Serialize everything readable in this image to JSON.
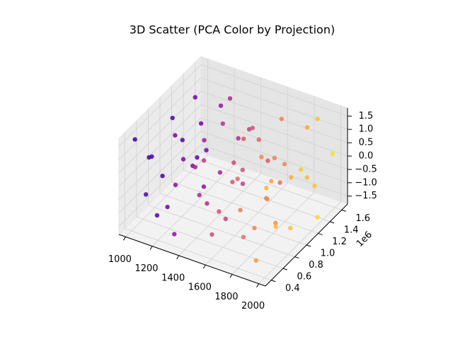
{
  "chart_data": {
    "type": "scatter3d",
    "title": "3D Scatter (PCA Color by Projection)",
    "colormap": "plasma",
    "grid": true,
    "x": [
      1000,
      1100,
      1200,
      1300,
      1400,
      1500,
      1600,
      1700,
      1800,
      1900,
      2000,
      1000,
      1100,
      1200,
      1300,
      1400,
      1500,
      1600,
      1700,
      1800,
      1900,
      2000,
      1000,
      1100,
      1200,
      1300,
      1400,
      1500,
      1600,
      1700,
      1800,
      1900,
      2000,
      1000,
      1100,
      1200,
      1300,
      1400,
      1500,
      1600,
      1700,
      1800,
      1900,
      2000,
      1000,
      1100,
      1200,
      1300,
      1400,
      1500,
      1600,
      1700,
      1800,
      1900,
      2000,
      1000,
      1100,
      1200,
      1300,
      1400,
      1500,
      1600,
      1700,
      1800,
      1900,
      2000
    ],
    "y": [
      1520000,
      610000,
      1180000,
      450000,
      1390000,
      870000,
      1570000,
      720000,
      1040000,
      480000,
      1300000,
      930000,
      1450000,
      560000,
      1230000,
      780000,
      1590000,
      410000,
      1110000,
      680000,
      1480000,
      840000,
      1270000,
      420000,
      990000,
      1540000,
      650000,
      1160000,
      530000,
      1420000,
      900000,
      1350000,
      590000,
      700000,
      1360000,
      830000,
      470000,
      1500000,
      1010000,
      760000,
      1250000,
      440000,
      1080000,
      1560000,
      1100000,
      520000,
      1470000,
      960000,
      580000,
      1330000,
      1210000,
      620000,
      1580000,
      740000,
      1020000,
      460000,
      1260000,
      690000,
      1400000,
      1050000,
      500000,
      950000,
      1370000,
      800000,
      1530000,
      430000
    ],
    "z": [
      -1.5,
      -1.5,
      -1.5,
      -1.5,
      -1.5,
      -1.5,
      -1.5,
      -1.5,
      -1.5,
      -1.5,
      -1.5,
      -0.9,
      -0.9,
      -0.9,
      -0.9,
      -0.9,
      -0.9,
      -0.9,
      -0.9,
      -0.9,
      -0.9,
      -0.9,
      -0.3,
      -0.3,
      -0.3,
      -0.3,
      -0.3,
      -0.3,
      -0.3,
      -0.3,
      -0.3,
      -0.3,
      -0.3,
      0.3,
      0.3,
      0.3,
      0.3,
      0.3,
      0.3,
      0.3,
      0.3,
      0.3,
      0.3,
      0.3,
      0.9,
      0.9,
      0.9,
      0.9,
      0.9,
      0.9,
      0.9,
      0.9,
      0.9,
      0.9,
      0.9,
      1.5,
      1.5,
      1.5,
      1.5,
      1.5,
      1.5,
      1.5,
      1.5,
      1.5,
      1.5,
      1.5
    ],
    "xlim": [
      950,
      2050
    ],
    "xticks": [
      1000,
      1200,
      1400,
      1600,
      1800,
      2000
    ],
    "ylim": [
      300000,
      1700000
    ],
    "yticks": [
      {
        "value": 400000,
        "label": "0.4"
      },
      {
        "value": 600000,
        "label": "0.6"
      },
      {
        "value": 800000,
        "label": "0.8"
      },
      {
        "value": 1000000,
        "label": "1.0"
      },
      {
        "value": 1200000,
        "label": "1.2"
      },
      {
        "value": 1400000,
        "label": "1.4"
      },
      {
        "value": 1600000,
        "label": "1.6"
      }
    ],
    "y_offset_label": "1e6",
    "zlim": [
      -1.8,
      1.8
    ],
    "zticks": [
      {
        "value": -1.5,
        "label": "−1.5"
      },
      {
        "value": -1.0,
        "label": "−1.0"
      },
      {
        "value": -0.5,
        "label": "−0.5"
      },
      {
        "value": 0.0,
        "label": "0.0"
      },
      0.5,
      {
        "value": 1.0,
        "label": "1.0"
      },
      1.5
    ]
  }
}
